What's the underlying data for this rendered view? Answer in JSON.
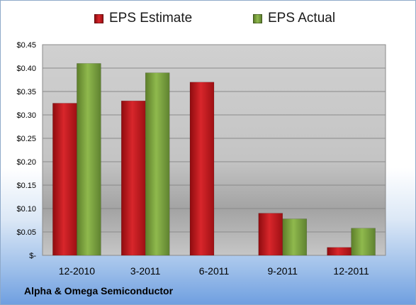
{
  "chart_data": {
    "type": "bar",
    "title": "",
    "xlabel": "",
    "ylabel": "",
    "categories": [
      "12-2010",
      "3-2011",
      "6-2011",
      "9-2011",
      "12-2011"
    ],
    "series": [
      {
        "name": "EPS Estimate",
        "values": [
          0.325,
          0.33,
          0.37,
          0.09,
          0.017
        ],
        "color": "#c0161b"
      },
      {
        "name": "EPS Actual",
        "values": [
          0.41,
          0.39,
          null,
          0.078,
          0.058
        ],
        "color": "#77a13a"
      }
    ],
    "ylim": [
      0,
      0.45
    ],
    "yticks": [
      {
        "value": 0,
        "label": "$-"
      },
      {
        "value": 0.05,
        "label": "$0.05"
      },
      {
        "value": 0.1,
        "label": "$0.10"
      },
      {
        "value": 0.15,
        "label": "$0.15"
      },
      {
        "value": 0.2,
        "label": "$0.20"
      },
      {
        "value": 0.25,
        "label": "$0.25"
      },
      {
        "value": 0.3,
        "label": "$0.30"
      },
      {
        "value": 0.35,
        "label": "$0.35"
      },
      {
        "value": 0.4,
        "label": "$0.40"
      },
      {
        "value": 0.45,
        "label": "$0.45"
      }
    ],
    "grid": true,
    "legend_position": "top-center"
  },
  "footer": {
    "company": "Alpha & Omega Semiconductor"
  }
}
